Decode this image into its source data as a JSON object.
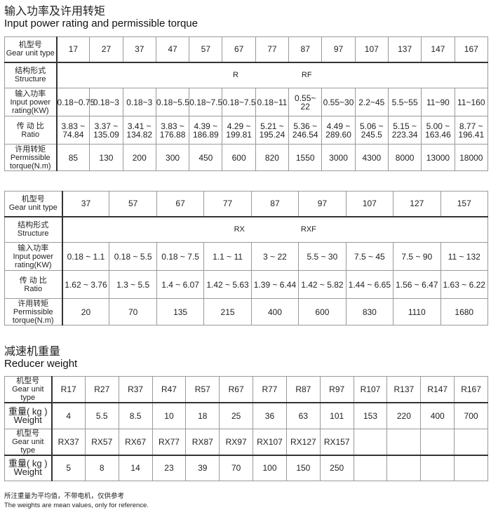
{
  "section1": {
    "title_cn": "输入功率及许用转矩",
    "title_en": "Input power rating and permissible torque"
  },
  "row_labels": {
    "type_cn": "机型号",
    "type_en": "Gear unit type",
    "structure_cn": "结构形式",
    "structure_en": "Structure",
    "power_cn": "输入功率",
    "power_en1": "Input power",
    "power_en2": "rating(KW)",
    "ratio_cn": "传 动 比",
    "ratio_en": "Ratio",
    "torque_cn": "许用转矩",
    "torque_en1": "Permissible",
    "torque_en2": "torque(N.m)",
    "weight_cn": "重量( kg )",
    "weight_en": "Weight"
  },
  "table1": {
    "types": [
      "17",
      "27",
      "37",
      "47",
      "57",
      "67",
      "77",
      "87",
      "97",
      "107",
      "137",
      "147",
      "167"
    ],
    "structure": [
      "R",
      "RF"
    ],
    "power": [
      "0.18~0.75",
      "0.18~3",
      "0.18~3",
      "0.18~5.5",
      "0.18~7.5",
      "0.18~7.5",
      "0.18~11",
      "0.55~ 22",
      "0.55~30",
      "2.2~45",
      "5.5~55",
      "11~90",
      "11~160"
    ],
    "ratio": [
      [
        "3.83 ~",
        "74.84"
      ],
      [
        "3.37 ~",
        "135.09"
      ],
      [
        "3.41 ~",
        "134.82"
      ],
      [
        "3.83 ~",
        "176.88"
      ],
      [
        "4.39 ~",
        "186.89"
      ],
      [
        "4.29 ~",
        "199.81"
      ],
      [
        "5.21 ~",
        "195.24"
      ],
      [
        "5.36 ~",
        "246.54"
      ],
      [
        "4.49 ~",
        "289.60"
      ],
      [
        "5.06 ~",
        "245.5"
      ],
      [
        "5.15 ~",
        "223.34"
      ],
      [
        "5.00 ~",
        "163.46"
      ],
      [
        "8.77 ~",
        "196.41"
      ]
    ],
    "torque": [
      "85",
      "130",
      "200",
      "300",
      "450",
      "600",
      "820",
      "1550",
      "3000",
      "4300",
      "8000",
      "13000",
      "18000"
    ]
  },
  "table2": {
    "types": [
      "37",
      "57",
      "67",
      "77",
      "87",
      "97",
      "107",
      "127",
      "157"
    ],
    "structure": [
      "RX",
      "RXF"
    ],
    "power": [
      "0.18 ~ 1.1",
      "0.18 ~ 5.5",
      "0.18 ~ 7.5",
      "1.1 ~ 11",
      "3 ~ 22",
      "5.5 ~ 30",
      "7.5 ~ 45",
      "7.5 ~ 90",
      "11 ~ 132"
    ],
    "ratio": [
      "1.62 ~ 3.76",
      "1.3 ~ 5.5",
      "1.4 ~ 6.07",
      "1.42 ~ 5.63",
      "1.39 ~ 6.44",
      "1.42 ~ 5.82",
      "1.44 ~ 6.65",
      "1.56 ~ 6.47",
      "1.63 ~ 6.22"
    ],
    "torque": [
      "20",
      "70",
      "135",
      "215",
      "400",
      "600",
      "830",
      "1110",
      "1680"
    ]
  },
  "section2": {
    "title_cn": "减速机重量",
    "title_en": "Reducer weight"
  },
  "table3": {
    "r_types": [
      "R17",
      "R27",
      "R37",
      "R47",
      "R57",
      "R67",
      "R77",
      "R87",
      "R97",
      "R107",
      "R137",
      "R147",
      "R167"
    ],
    "r_weights": [
      "4",
      "5.5",
      "8.5",
      "10",
      "18",
      "25",
      "36",
      "63",
      "101",
      "153",
      "220",
      "400",
      "700"
    ],
    "rx_types": [
      "RX37",
      "RX57",
      "RX67",
      "RX77",
      "RX87",
      "RX97",
      "RX107",
      "RX127",
      "RX157",
      "",
      "",
      "",
      ""
    ],
    "rx_weights": [
      "5",
      "8",
      "14",
      "23",
      "39",
      "70",
      "100",
      "150",
      "250",
      "",
      "",
      "",
      ""
    ]
  },
  "notes": {
    "cn": "所注重量为平均值，不带电机，仅供参考",
    "en": "The weights are mean values, only for reference."
  }
}
